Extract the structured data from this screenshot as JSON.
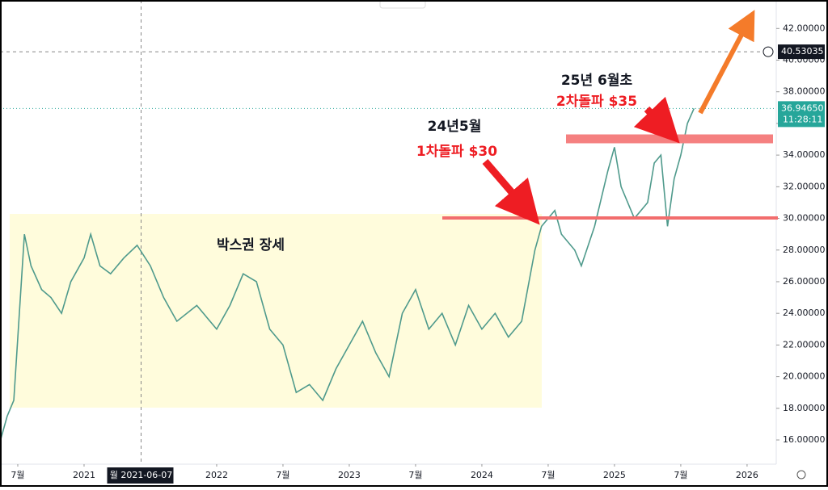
{
  "chart_data": {
    "type": "line",
    "x": [
      2020.37,
      2020.42,
      2020.47,
      2020.55,
      2020.6,
      2020.68,
      2020.75,
      2020.83,
      2020.9,
      2021.0,
      2021.05,
      2021.12,
      2021.2,
      2021.3,
      2021.4,
      2021.5,
      2021.6,
      2021.7,
      2021.85,
      2022.0,
      2022.1,
      2022.2,
      2022.3,
      2022.4,
      2022.5,
      2022.6,
      2022.7,
      2022.8,
      2022.9,
      2023.0,
      2023.1,
      2023.2,
      2023.3,
      2023.4,
      2023.5,
      2023.6,
      2023.7,
      2023.8,
      2023.9,
      2024.0,
      2024.1,
      2024.2,
      2024.3,
      2024.4,
      2024.45,
      2024.55,
      2024.6,
      2024.7,
      2024.75,
      2024.85,
      2024.95,
      2025.0,
      2025.05,
      2025.15,
      2025.25,
      2025.3,
      2025.35,
      2025.4,
      2025.45,
      2025.5,
      2025.55,
      2025.6
    ],
    "series": [
      {
        "name": "price",
        "color": "#4f9a8c",
        "values": [
          16,
          17.5,
          18.5,
          29,
          27,
          25.5,
          25,
          24,
          26,
          27.5,
          29,
          27,
          26.5,
          27.5,
          28.3,
          27,
          25,
          23.5,
          24.5,
          23,
          24.5,
          26.5,
          26,
          23,
          22,
          19,
          19.5,
          18.5,
          20.5,
          22,
          23.5,
          21.5,
          20,
          24,
          25.5,
          23,
          24,
          22,
          24.5,
          23,
          24,
          22.5,
          23.5,
          28,
          29.5,
          30.5,
          29,
          28,
          27,
          29.5,
          33,
          34.5,
          32,
          30,
          31,
          33.5,
          34,
          29.5,
          32.5,
          34,
          36,
          36.9465
        ]
      }
    ],
    "xlim": [
      2020.366,
      2026.22
    ],
    "ylim": [
      14.47,
      43.8
    ],
    "xticks": [
      {
        "value": 2020.5,
        "label": "7월"
      },
      2021,
      2022,
      {
        "value": 2022.5,
        "label": "7월"
      },
      2023,
      {
        "value": 2023.5,
        "label": "7월"
      },
      2024,
      {
        "value": 2024.5,
        "label": "7월"
      },
      2025,
      {
        "value": 2025.5,
        "label": "7월"
      },
      2026
    ],
    "yticks": [
      {
        "value": 16,
        "label": "16.00000"
      },
      {
        "value": 18,
        "label": "18.00000"
      },
      {
        "value": 20,
        "label": "20.00000"
      },
      {
        "value": 22,
        "label": "22.00000"
      },
      {
        "value": 24,
        "label": "24.00000"
      },
      {
        "value": 26,
        "label": "26.00000"
      },
      {
        "value": 28,
        "label": "28.00000"
      },
      {
        "value": 30,
        "label": "30.00000"
      },
      {
        "value": 32,
        "label": "32.00000"
      },
      {
        "value": 34,
        "label": "34.00000"
      },
      {
        "value": 36,
        "label": "36.00000"
      },
      {
        "value": 38,
        "label": "38.00000"
      },
      {
        "value": 40,
        "label": "40.00000"
      },
      {
        "value": 42,
        "label": "42.00000"
      }
    ],
    "crosshair_x": {
      "value": 2021.43,
      "label": "월 2021-06-07"
    },
    "crosshair_price": {
      "value": 40.53035,
      "label": "40.53035"
    },
    "last_price": {
      "value": 36.9465,
      "label": "36.94650"
    },
    "time_left": "11:28:11",
    "annotations": [
      "박스권 장세",
      "24년5월",
      "1차돌파 $30",
      "25년 6월초",
      "2차돌파 $35"
    ]
  }
}
